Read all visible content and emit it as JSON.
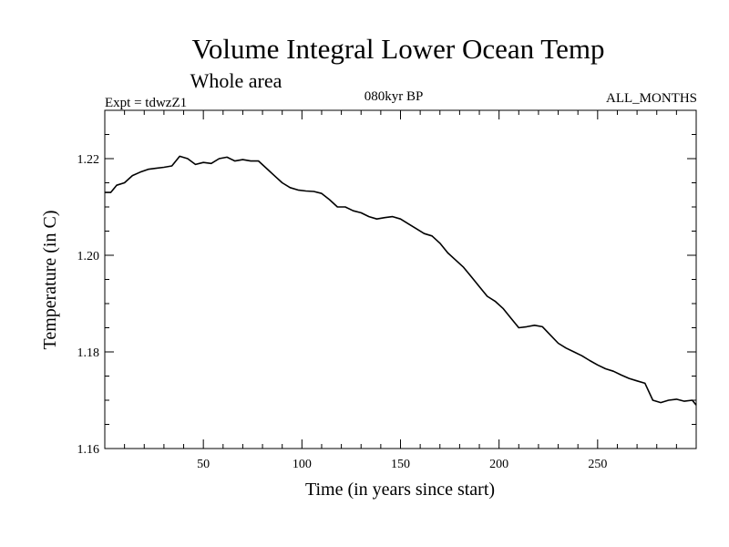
{
  "chart_data": {
    "type": "line",
    "title": "Volume Integral Lower Ocean Temp",
    "subtitle": "Whole area",
    "expt_label": "Expt = tdwzZ1",
    "period_label": "080kyr BP",
    "months_label": "ALL_MONTHS",
    "xlabel": "Time (in years since start)",
    "ylabel": "Temperature (in C)",
    "xlim": [
      0,
      300
    ],
    "ylim": [
      1.16,
      1.23
    ],
    "x_ticks": [
      50,
      100,
      150,
      200,
      250
    ],
    "x_tick_labels": [
      "50",
      "100",
      "150",
      "200",
      "250"
    ],
    "y_ticks": [
      1.16,
      1.18,
      1.2,
      1.22
    ],
    "y_tick_labels": [
      "1.16",
      "1.18",
      "1.20",
      "1.22"
    ],
    "x_minor_step": 10,
    "y_minor_step": 0.005,
    "grid": false,
    "series": [
      {
        "name": "Volume Integral Lower Ocean Temp",
        "color": "#000000",
        "x": [
          0,
          3,
          6,
          10,
          14,
          18,
          22,
          26,
          30,
          34,
          38,
          42,
          46,
          50,
          54,
          58,
          62,
          66,
          70,
          74,
          78,
          82,
          86,
          90,
          94,
          98,
          102,
          106,
          110,
          114,
          118,
          122,
          126,
          130,
          134,
          138,
          142,
          146,
          150,
          154,
          158,
          162,
          166,
          170,
          174,
          178,
          182,
          186,
          190,
          194,
          198,
          202,
          206,
          210,
          214,
          218,
          222,
          226,
          230,
          234,
          238,
          242,
          246,
          250,
          254,
          258,
          262,
          266,
          270,
          274,
          278,
          282,
          286,
          290,
          294,
          298,
          300
        ],
        "y": [
          1.213,
          1.213,
          1.2145,
          1.215,
          1.2165,
          1.2172,
          1.2178,
          1.218,
          1.2182,
          1.2185,
          1.2205,
          1.22,
          1.2188,
          1.2192,
          1.219,
          1.22,
          1.2203,
          1.2195,
          1.2198,
          1.2195,
          1.2195,
          1.218,
          1.2165,
          1.215,
          1.214,
          1.2135,
          1.2133,
          1.2132,
          1.2128,
          1.2115,
          1.21,
          1.21,
          1.2092,
          1.2088,
          1.208,
          1.2075,
          1.2078,
          1.208,
          1.2075,
          1.2065,
          1.2055,
          1.2045,
          1.204,
          1.2025,
          1.2005,
          1.199,
          1.1975,
          1.1955,
          1.1935,
          1.1915,
          1.1905,
          1.189,
          1.187,
          1.185,
          1.1852,
          1.1855,
          1.1852,
          1.1835,
          1.1818,
          1.1808,
          1.18,
          1.1792,
          1.1782,
          1.1773,
          1.1765,
          1.176,
          1.1752,
          1.1745,
          1.174,
          1.1735,
          1.17,
          1.1695,
          1.17,
          1.1702,
          1.1698,
          1.17,
          1.169
        ]
      }
    ]
  }
}
